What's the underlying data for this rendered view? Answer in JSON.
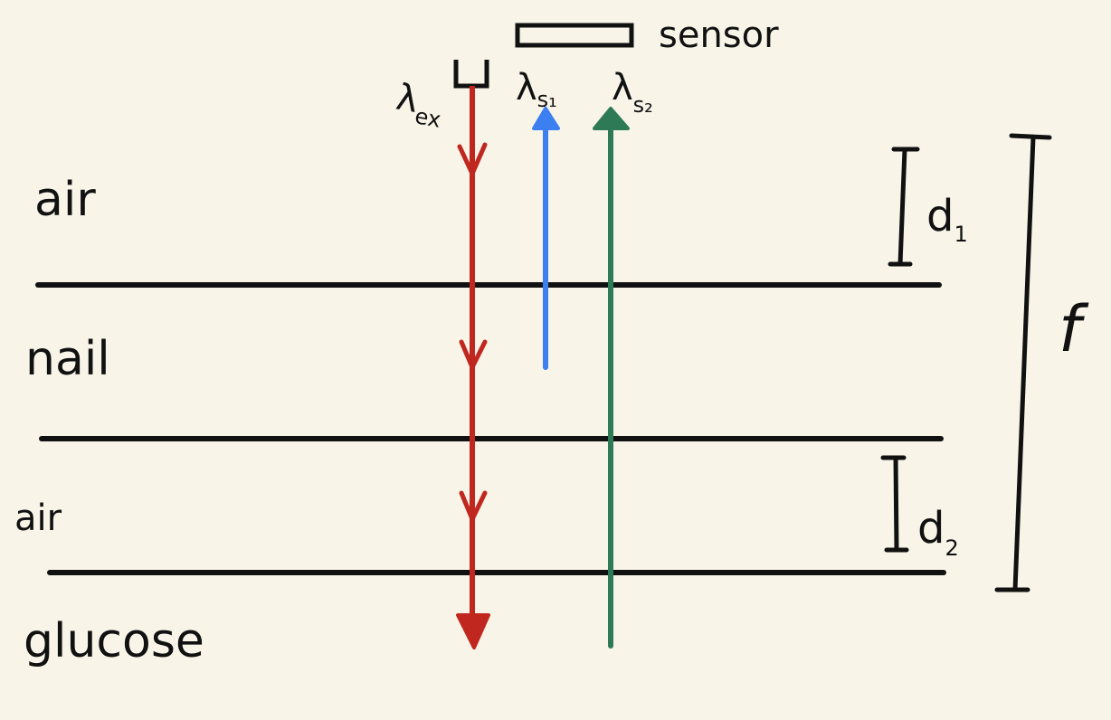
{
  "diagram": {
    "layers": [
      "air",
      "nail",
      "air",
      "glucose"
    ],
    "sensor_label": "sensor",
    "beams": {
      "excitation": {
        "symbol": "λ",
        "subscript": "ex",
        "color": "#c0271f"
      },
      "emission_1": {
        "symbol": "λ",
        "subscript": "s₁",
        "color": "#3b7ff0"
      },
      "emission_2": {
        "symbol": "λ",
        "subscript": "s₂",
        "color": "#2e7a57"
      }
    },
    "dimensions": {
      "d1": {
        "symbol": "d",
        "subscript": "1"
      },
      "d2": {
        "symbol": "d",
        "subscript": "2"
      },
      "f": "f"
    },
    "line_color": "#111111",
    "background": "#f8f5e8"
  }
}
